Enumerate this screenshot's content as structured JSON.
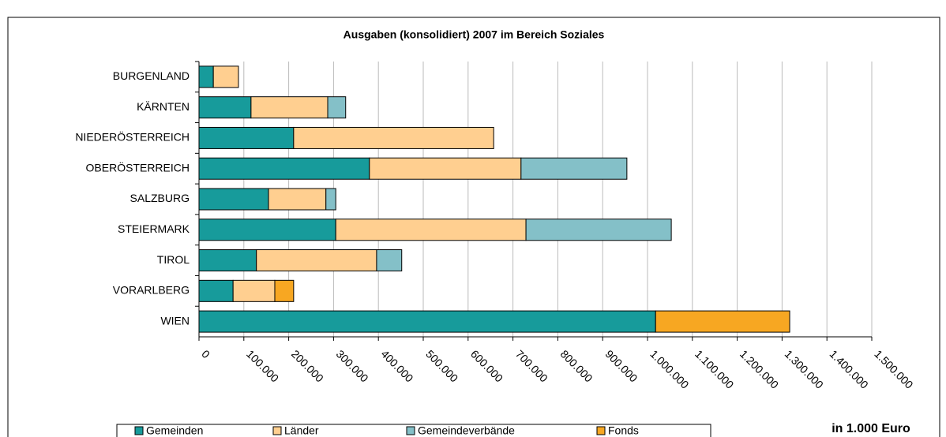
{
  "chart_data": {
    "type": "stacked_barh",
    "title": "Ausgaben (konsolidiert) 2007 im Bereich Soziales",
    "x_label": "in 1.000 Euro",
    "categories": [
      "BURGENLAND",
      "KÄRNTEN",
      "NIEDERÖSTERREICH",
      "OBERÖSTERREICH",
      "SALZBURG",
      "STEIERMARK",
      "TIROL",
      "VORARLBERG",
      "WIEN"
    ],
    "series": [
      {
        "name": "Gemeinden",
        "color": "#179b9b",
        "values": [
          32000,
          116000,
          211000,
          380000,
          155000,
          305000,
          128000,
          76000,
          1018000
        ]
      },
      {
        "name": "Länder",
        "color": "#ffcf90",
        "values": [
          56000,
          171000,
          446000,
          338000,
          128000,
          424000,
          268000,
          93000,
          null
        ]
      },
      {
        "name": "Gemeindeverbände",
        "color": "#84c0c8",
        "values": [
          null,
          40000,
          null,
          236000,
          22000,
          324000,
          56000,
          null,
          null
        ]
      },
      {
        "name": "Fonds",
        "color": "#f7a722",
        "values": [
          null,
          null,
          null,
          null,
          null,
          null,
          null,
          42000,
          299000
        ]
      }
    ],
    "xlim": [
      0,
      1500000
    ],
    "xticks": [
      0,
      {
        "value": 100000,
        "label": "100.000"
      },
      {
        "value": 200000,
        "label": "200.000"
      },
      {
        "value": 300000,
        "label": "300.000"
      },
      {
        "value": 400000,
        "label": "400.000"
      },
      {
        "value": 500000,
        "label": "500.000"
      },
      {
        "value": 600000,
        "label": "600.000"
      },
      {
        "value": 700000,
        "label": "700.000"
      },
      {
        "value": 800000,
        "label": "800.000"
      },
      {
        "value": 900000,
        "label": "900.000"
      },
      {
        "value": 1000000,
        "label": "1.000.000"
      },
      {
        "value": 1100000,
        "label": "1.100.000"
      },
      {
        "value": 1200000,
        "label": "1.200.000"
      },
      {
        "value": 1300000,
        "label": "1.300.000"
      },
      {
        "value": 1400000,
        "label": "1.400.000"
      },
      {
        "value": 1500000,
        "label": "1.500.000"
      }
    ],
    "grid": true,
    "legend": "bottom"
  }
}
